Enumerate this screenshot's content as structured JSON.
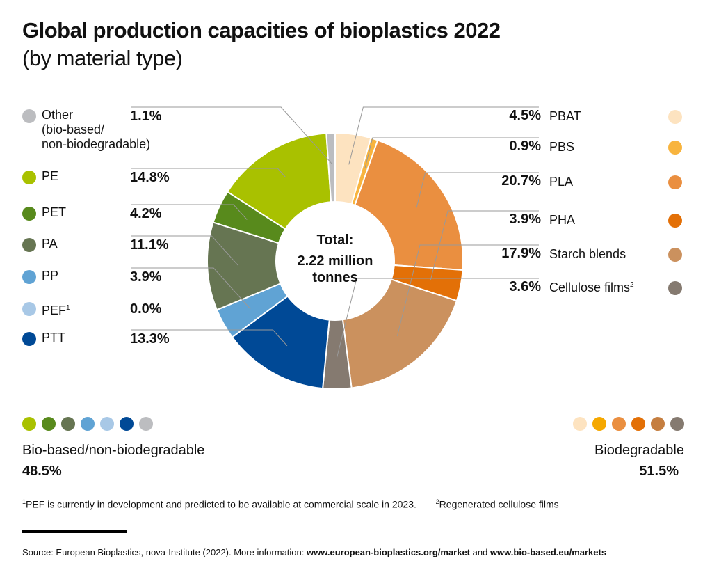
{
  "title": "Global production capacities of bioplastics 2022",
  "subtitle": "(by material type)",
  "chart_data": {
    "type": "pie",
    "variant": "donut",
    "title": "Global production capacities of bioplastics 2022",
    "subtitle": "(by material type)",
    "center_label": {
      "line1": "Total:",
      "line2": "2.22 million",
      "line3": "tonnes"
    },
    "unit": "%",
    "start": "top, clockwise",
    "slices": [
      {
        "name": "PBAT",
        "value": 4.5,
        "label": "4.5%",
        "group": "Biodegradable",
        "color": "#fde3c0"
      },
      {
        "name": "PBS",
        "value": 0.9,
        "label": "0.9%",
        "group": "Biodegradable",
        "color": "#f8b43e"
      },
      {
        "name": "PLA",
        "value": 20.7,
        "label": "20.7%",
        "group": "Biodegradable",
        "color": "#ea8f40"
      },
      {
        "name": "PHA",
        "value": 3.9,
        "label": "3.9%",
        "group": "Biodegradable",
        "color": "#e37007"
      },
      {
        "name": "Starch blends",
        "value": 17.9,
        "label": "17.9%",
        "group": "Biodegradable",
        "color": "#cb915e"
      },
      {
        "name": "Cellulose films",
        "sup": "2",
        "value": 3.6,
        "label": "3.6%",
        "group": "Biodegradable",
        "color": "#857a70"
      },
      {
        "name": "PTT",
        "value": 13.3,
        "label": "13.3%",
        "group": "Bio-based/non-biodegradable",
        "color": "#004996"
      },
      {
        "name": "PEF",
        "sup": "1",
        "value": 0.0,
        "label": "0.0%",
        "group": "Bio-based/non-biodegradable",
        "color": "#a8c8e6"
      },
      {
        "name": "PP",
        "value": 3.9,
        "label": "3.9%",
        "group": "Bio-based/non-biodegradable",
        "color": "#60a3d4"
      },
      {
        "name": "PA",
        "value": 11.1,
        "label": "11.1%",
        "group": "Bio-based/non-biodegradable",
        "color": "#667552"
      },
      {
        "name": "PET",
        "value": 4.2,
        "label": "4.2%",
        "group": "Bio-based/non-biodegradable",
        "color": "#588a1c"
      },
      {
        "name": "PE",
        "value": 14.8,
        "label": "14.8%",
        "group": "Bio-based/non-biodegradable",
        "color": "#a9c100"
      },
      {
        "name": "Other",
        "name_lines": [
          "Other",
          "(bio-based/",
          "non-biodegradable)"
        ],
        "value": 1.1,
        "label": "1.1%",
        "group": "Bio-based/non-biodegradable",
        "color": "#bcbdc0"
      }
    ],
    "left_legend_order": [
      "Other",
      "PE",
      "PET",
      "PA",
      "PP",
      "PEF",
      "PTT"
    ],
    "right_legend_order": [
      "PBAT",
      "PBS",
      "PLA",
      "PHA",
      "Starch blends",
      "Cellulose films"
    ]
  },
  "groups": {
    "left": {
      "label": "Bio-based/non-biodegradable",
      "value": "48.5%",
      "colors": [
        "#a9c100",
        "#588a1c",
        "#667552",
        "#60a3d4",
        "#a8c8e6",
        "#004996",
        "#bcbdc0"
      ]
    },
    "right": {
      "label": "Biodegradable",
      "value": "51.5%",
      "colors": [
        "#fde3c0",
        "#f5a800",
        "#ea8f40",
        "#e37007",
        "#c57e40",
        "#857a70"
      ]
    }
  },
  "footnotes": {
    "note1_mark": "1",
    "note1": "PEF is currently in development and predicted to be available at commercial scale in 2023.",
    "note2_mark": "2",
    "note2": "Regenerated cellulose films"
  },
  "source": {
    "prefix": "Source: European Bioplastics, nova-Institute (2022). More information: ",
    "link1": "www.european-bioplastics.org/market",
    "mid": " and ",
    "link2": "www.bio-based.eu/markets"
  }
}
